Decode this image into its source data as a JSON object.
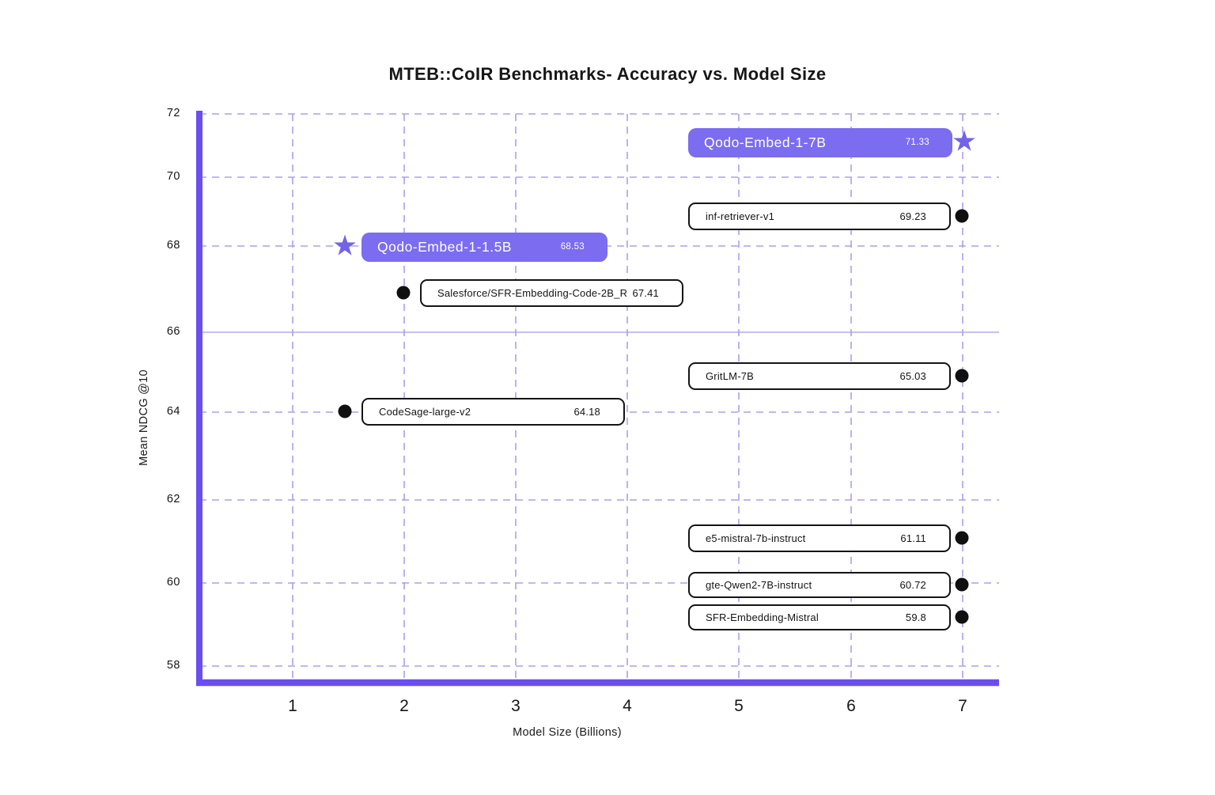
{
  "page": {
    "background": "#ffffff"
  },
  "chart_data": {
    "type": "scatter",
    "title": "MTEB::CoIR Benchmarks- Accuracy vs. Model Size",
    "xlabel": "Model Size (Billions)",
    "ylabel": "Mean NDCG @10",
    "x_ticks": [
      1,
      2,
      3,
      4,
      5,
      6,
      7
    ],
    "y_ticks": [
      72,
      70,
      68,
      66,
      64,
      62,
      60,
      58
    ],
    "xlim": [
      0.15,
      7.35
    ],
    "ylim": [
      57.6,
      72
    ],
    "grid": "dashed",
    "solid_gridline_at_y": 66,
    "legend_position": "none",
    "colors": {
      "accent_box": "#7b6cf0",
      "star": "#7164e8",
      "axis": "#6a4ef2",
      "grid": "#a9a0f3",
      "solid_grid": "#a49af0",
      "dot": "#101010"
    },
    "points": [
      {
        "name": "Qodo-Embed-1-7B",
        "model_size": 7,
        "score": 71.33,
        "marker": "star",
        "highlight": true
      },
      {
        "name": "inf-retriever-v1",
        "model_size": 7,
        "score": 69.23,
        "marker": "dot",
        "highlight": false
      },
      {
        "name": "Qodo-Embed-1-1.5B",
        "model_size": 1.5,
        "score": 68.53,
        "marker": "star",
        "highlight": true
      },
      {
        "name": "Salesforce/SFR-Embedding-Code-2B_R",
        "model_size": 2,
        "score": 67.41,
        "marker": "dot",
        "highlight": false
      },
      {
        "name": "GritLM-7B",
        "model_size": 7,
        "score": 65.03,
        "marker": "dot",
        "highlight": false
      },
      {
        "name": "CodeSage-large-v2",
        "model_size": 1.5,
        "score": 64.18,
        "marker": "dot",
        "highlight": false
      },
      {
        "name": "e5-mistral-7b-instruct",
        "model_size": 7,
        "score": 61.11,
        "marker": "dot",
        "highlight": false
      },
      {
        "name": "gte-Qwen2-7B-instruct",
        "model_size": 7,
        "score": 60.72,
        "marker": "dot",
        "highlight": false
      },
      {
        "name": "SFR-Embedding-Mistral",
        "model_size": 7,
        "score": 59.8,
        "marker": "dot",
        "highlight": false
      }
    ]
  }
}
